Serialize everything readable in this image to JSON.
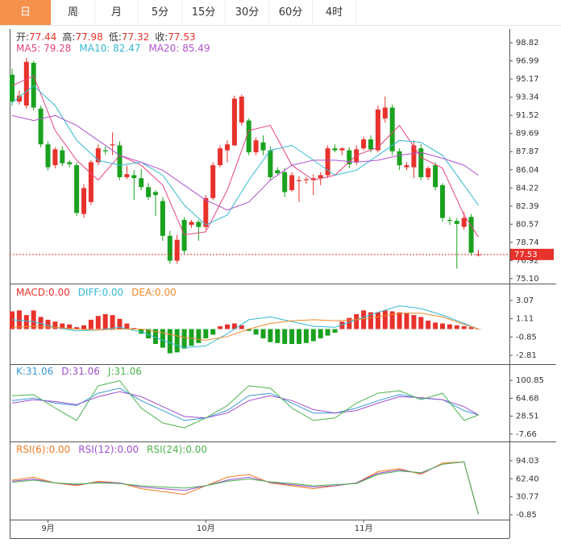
{
  "tabs": [
    "日",
    "周",
    "月",
    "5分",
    "15分",
    "30分",
    "60分",
    "4时"
  ],
  "active_tab": 0,
  "chart_data": [
    {
      "type": "candlestick",
      "categories": [
        null,
        null,
        null,
        null,
        null,
        "9月",
        null,
        null,
        null,
        null,
        null,
        null,
        null,
        null,
        null,
        null,
        null,
        null,
        null,
        null,
        null,
        null,
        null,
        null,
        null,
        null,
        null,
        "10月",
        null,
        null,
        null,
        null,
        null,
        null,
        null,
        null,
        null,
        null,
        null,
        null,
        null,
        null,
        null,
        null,
        null,
        null,
        null,
        null,
        null,
        "11月",
        null,
        null,
        null,
        null,
        null,
        null,
        null,
        null,
        null,
        null,
        null,
        null,
        null,
        null,
        null,
        null
      ],
      "open": [
        95.6,
        92.9,
        92.5,
        96.8,
        92.2,
        88.6,
        86.5,
        88.0,
        86.8,
        86.5,
        81.6,
        82.8,
        86.8,
        88.0,
        88.5,
        88.5,
        85.3,
        85.5,
        85.2,
        84.3,
        83.8,
        82.9,
        79.4,
        76.9,
        81.0,
        80.5,
        80.8,
        80.3,
        83.2,
        86.5,
        88.0,
        88.5,
        90.8,
        91.0,
        87.8,
        88.8,
        88.0,
        86.0,
        85.8,
        84.0,
        84.9,
        85.0,
        85.0,
        85.2,
        85.5,
        88.2,
        88.0,
        88.0,
        86.8,
        88.2,
        89.1,
        88.0,
        91.2,
        92.3,
        87.9,
        86.3,
        86.3,
        88.2,
        85.3,
        86.5,
        84.5,
        81.0,
        80.9,
        80.3,
        81.3,
        77.44
      ],
      "high": [
        96.2,
        94.0,
        97.3,
        97.0,
        92.5,
        88.9,
        88.3,
        88.4,
        87.0,
        86.8,
        84.6,
        87.0,
        88.6,
        88.4,
        89.8,
        88.9,
        86.5,
        86.0,
        86.1,
        84.7,
        84.0,
        83.3,
        79.9,
        79.5,
        81.3,
        81.0,
        81.0,
        83.5,
        86.8,
        88.5,
        89.0,
        93.5,
        93.6,
        91.2,
        89.3,
        89.5,
        88.4,
        86.3,
        86.2,
        85.8,
        85.4,
        85.3,
        85.6,
        85.8,
        88.5,
        88.6,
        88.3,
        88.3,
        88.5,
        89.4,
        89.5,
        92.5,
        93.4,
        92.6,
        88.2,
        86.8,
        89.0,
        88.6,
        86.4,
        86.8,
        84.7,
        81.3,
        81.2,
        81.8,
        81.6,
        77.98
      ],
      "low": [
        92.5,
        92.6,
        92.2,
        92.0,
        88.3,
        86.0,
        86.2,
        86.4,
        86.3,
        81.4,
        81.2,
        82.5,
        86.5,
        87.6,
        87.5,
        85.0,
        85.1,
        83.0,
        84.0,
        83.0,
        81.4,
        78.9,
        76.6,
        76.6,
        77.6,
        80.2,
        78.9,
        80.0,
        83.0,
        86.3,
        86.8,
        88.4,
        90.5,
        87.5,
        87.5,
        87.5,
        85.0,
        85.5,
        83.3,
        83.8,
        82.8,
        84.6,
        83.5,
        84.5,
        85.2,
        87.8,
        87.5,
        86.2,
        86.5,
        88.0,
        87.8,
        87.8,
        90.8,
        87.5,
        86.0,
        86.0,
        85.2,
        85.0,
        85.0,
        84.0,
        80.8,
        80.5,
        76.1,
        80.0,
        77.4,
        77.32
      ],
      "close": [
        92.9,
        93.5,
        96.9,
        92.3,
        88.6,
        86.3,
        88.1,
        86.7,
        86.6,
        81.7,
        84.2,
        86.8,
        88.2,
        87.9,
        88.6,
        85.3,
        85.6,
        85.2,
        84.3,
        83.3,
        83.5,
        79.4,
        76.9,
        79.0,
        77.9,
        80.8,
        80.3,
        83.2,
        86.5,
        88.2,
        88.6,
        93.2,
        93.4,
        87.8,
        89.0,
        88.0,
        85.3,
        85.7,
        83.8,
        85.5,
        85.0,
        85.1,
        85.2,
        85.5,
        88.2,
        88.0,
        88.2,
        86.6,
        88.1,
        89.1,
        88.1,
        92.1,
        92.3,
        87.9,
        86.5,
        86.5,
        88.5,
        85.3,
        86.2,
        84.3,
        81.2,
        80.9,
        80.6,
        81.2,
        77.7,
        77.53
      ],
      "up_color": "#e8322c",
      "down_color": "#1aa11f",
      "info": [
        {
          "label": "开:",
          "value": 77.44
        },
        {
          "label": "高:",
          "value": 77.98
        },
        {
          "label": "低:",
          "value": 77.32
        },
        {
          "label": "收:",
          "value": 77.53
        }
      ],
      "last_price": 77.53,
      "ylim": [
        74.6,
        100.2
      ],
      "yticks": [
        98.82,
        96.99,
        95.17,
        93.34,
        91.52,
        89.69,
        87.87,
        86.04,
        84.22,
        82.39,
        80.57,
        78.74,
        76.92,
        {
          "value": 75.1,
          "label": "75.10"
        }
      ],
      "x": [
        0,
        3,
        6,
        9,
        12,
        15,
        18,
        21,
        24,
        27,
        30,
        33,
        36,
        39,
        42,
        45,
        48,
        51,
        54,
        57,
        60,
        63,
        65
      ],
      "series": [
        {
          "name": "MA5: ",
          "last": 79.28,
          "color": "#e8447e",
          "values": [
            94.5,
            95.5,
            90,
            87,
            85,
            87.5,
            86.5,
            84.5,
            79.5,
            79.8,
            84,
            90,
            90.5,
            86.5,
            85,
            85.5,
            87.5,
            88.3,
            90.5,
            87.3,
            86.2,
            81.5,
            79.28
          ]
        },
        {
          "name": "MA10: ",
          "last": 82.47,
          "color": "#33b8d4",
          "values": [
            92.8,
            94.5,
            92.5,
            89,
            87,
            86.5,
            86.8,
            85.5,
            82.5,
            80.5,
            81.5,
            85,
            88,
            88.5,
            87,
            85.5,
            86,
            87.5,
            89,
            88.8,
            87.5,
            84.5,
            82.47
          ]
        },
        {
          "name": "MA20: ",
          "last": 85.49,
          "color": "#b052cf",
          "values": [
            91.5,
            91,
            91.5,
            90.5,
            89,
            87.5,
            86.8,
            86,
            84.5,
            83,
            82,
            82.8,
            85,
            86.5,
            87,
            87,
            86.8,
            87,
            87.5,
            87.8,
            87.2,
            86.5,
            85.49
          ]
        }
      ]
    },
    {
      "type": "macd",
      "histogram": {
        "name": "MACD:",
        "last": 0,
        "last_label": "0.00",
        "color": "#e8322c",
        "values": [
          1.9,
          2.0,
          1.5,
          2.0,
          1.3,
          1.0,
          0.8,
          0.6,
          0.5,
          0.2,
          0.4,
          1.0,
          1.4,
          1.6,
          1.5,
          1.1,
          0.6,
          0.1,
          -0.5,
          -1.0,
          -1.6,
          -2.0,
          -2.6,
          -2.5,
          -2.1,
          -1.8,
          -1.5,
          -1.0,
          -0.6,
          0.3,
          0.5,
          0.6,
          0.4,
          -0.2,
          -0.6,
          -1.0,
          -1.4,
          -1.5,
          -1.6,
          -1.6,
          -1.6,
          -1.5,
          -1.3,
          -1.0,
          -0.7,
          -0.4,
          0.8,
          1.2,
          1.6,
          2.0,
          1.8,
          1.8,
          2.0,
          1.9,
          1.8,
          1.7,
          1.5,
          1.3,
          0.9,
          0.7,
          0.6,
          0.5,
          0.4,
          0.3,
          0.2,
          0.0
        ]
      },
      "up_color": "#e8322c",
      "down_color": "#1aa11f",
      "ylim": [
        -3.59,
        4.71
      ],
      "yticks": [
        3.07,
        1.11,
        -0.85,
        -2.81
      ],
      "x": [
        0,
        3,
        6,
        9,
        12,
        15,
        18,
        21,
        24,
        27,
        30,
        33,
        36,
        39,
        42,
        45,
        48,
        51,
        54,
        57,
        60,
        63,
        65
      ],
      "series": [
        {
          "name": "DIFF:",
          "last": 0,
          "last_label": "0.00",
          "color": "#33b8d4",
          "values": [
            1.0,
            0.8,
            0.2,
            -0.2,
            -0.1,
            0.2,
            -0.3,
            -1.2,
            -2.0,
            -1.8,
            -0.5,
            1.0,
            1.3,
            0.8,
            0.3,
            0.2,
            1.0,
            1.8,
            2.5,
            2.2,
            1.5,
            0.6,
            0.0
          ]
        },
        {
          "name": "DEA:",
          "last": 0,
          "last_label": "0.00",
          "color": "#f08a2c",
          "values": [
            0.2,
            0.3,
            0.2,
            0.0,
            -0.1,
            0.0,
            0.0,
            -0.4,
            -0.9,
            -1.2,
            -0.8,
            0.0,
            0.6,
            0.9,
            1.0,
            0.9,
            1.0,
            1.3,
            1.7,
            1.7,
            1.3,
            0.5,
            0.0
          ]
        }
      ]
    },
    {
      "type": "line",
      "ylim": [
        -22.5,
        130.45
      ],
      "yticks": [
        100.85,
        64.68,
        28.51,
        -7.66
      ],
      "x": [
        0,
        3,
        6,
        9,
        12,
        15,
        18,
        21,
        24,
        27,
        30,
        33,
        36,
        39,
        42,
        45,
        48,
        51,
        54,
        57,
        60,
        63,
        65
      ],
      "series": [
        {
          "name": "K:",
          "last": 31.06,
          "color": "#3b9ad9",
          "values": [
            60,
            65,
            55,
            50,
            75,
            85,
            60,
            40,
            20,
            25,
            40,
            70,
            75,
            55,
            35,
            35,
            45,
            60,
            72,
            65,
            62,
            40,
            31.06
          ]
        },
        {
          "name": "D:",
          "last": 31.06,
          "color": "#9d4fcf",
          "values": [
            55,
            62,
            58,
            52,
            68,
            78,
            68,
            48,
            28,
            25,
            35,
            60,
            70,
            60,
            42,
            35,
            40,
            55,
            68,
            66,
            62,
            48,
            31.06
          ]
        },
        {
          "name": "J:",
          "last": 31.06,
          "color": "#4bb34f",
          "values": [
            70,
            72,
            45,
            20,
            90,
            100,
            45,
            15,
            5,
            25,
            50,
            90,
            85,
            45,
            20,
            25,
            55,
            75,
            80,
            62,
            75,
            20,
            31.06
          ]
        }
      ]
    },
    {
      "type": "line",
      "ylim": [
        -9.29,
        124.97
      ],
      "yticks": [
        94.03,
        {
          "value": 62.4,
          "label": "62.40"
        },
        30.77,
        -0.85
      ],
      "x": [
        0,
        3,
        6,
        9,
        12,
        15,
        18,
        21,
        24,
        27,
        30,
        33,
        36,
        39,
        42,
        45,
        48,
        51,
        54,
        57,
        60,
        63,
        65
      ],
      "series": [
        {
          "name": "RSI(6):",
          "last": 0,
          "last_label": "0.00",
          "color": "#f07a22",
          "values": [
            60,
            65,
            55,
            50,
            58,
            55,
            45,
            40,
            35,
            50,
            65,
            70,
            55,
            50,
            45,
            50,
            55,
            75,
            80,
            70,
            90,
            92,
            0
          ]
        },
        {
          "name": "RSI(12):",
          "last": 0,
          "last_label": "0.00",
          "color": "#9d4fcf",
          "values": [
            58,
            62,
            55,
            52,
            56,
            55,
            48,
            45,
            42,
            50,
            60,
            65,
            56,
            52,
            48,
            50,
            55,
            72,
            78,
            72,
            88,
            92,
            0
          ]
        },
        {
          "name": "RSI(24):",
          "last": 0,
          "last_label": "0.00",
          "color": "#4bb34f",
          "values": [
            56,
            60,
            55,
            53,
            55,
            54,
            50,
            48,
            46,
            50,
            58,
            62,
            57,
            54,
            50,
            52,
            54,
            70,
            76,
            73,
            88,
            92,
            0
          ]
        }
      ]
    }
  ]
}
